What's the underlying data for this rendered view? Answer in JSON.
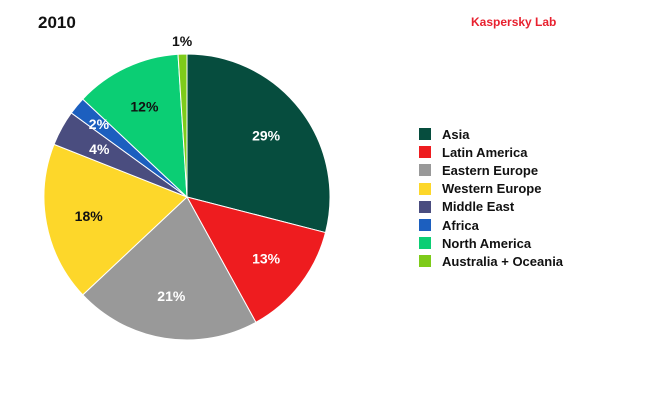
{
  "header": {
    "title": "2010",
    "brand": "Kaspersky Lab",
    "brand_color": "#e8212f"
  },
  "chart_data": {
    "type": "pie",
    "title": "2010",
    "legend_position": "right",
    "slices": [
      {
        "label": "Asia",
        "value": 29,
        "display": "29%",
        "color": "#064d3e"
      },
      {
        "label": "Latin America",
        "value": 13,
        "display": "13%",
        "color": "#ee1c1f"
      },
      {
        "label": "Eastern Europe",
        "value": 21,
        "display": "21%",
        "color": "#999999"
      },
      {
        "label": "Western Europe",
        "value": 18,
        "display": "18%",
        "color": "#fdd72a"
      },
      {
        "label": "Middle East",
        "value": 4,
        "display": "4%",
        "color": "#4a4d7f"
      },
      {
        "label": "Africa",
        "value": 2,
        "display": "2%",
        "color": "#1c5fbf"
      },
      {
        "label": "North America",
        "value": 12,
        "display": "12%",
        "color": "#0bce74"
      },
      {
        "label": "Australia + Oceania",
        "value": 1,
        "display": "1%",
        "color": "#7ecb1a"
      }
    ]
  }
}
